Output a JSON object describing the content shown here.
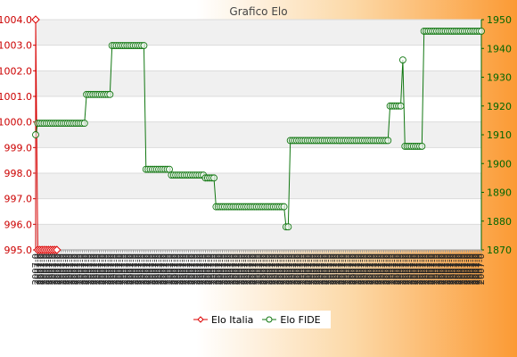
{
  "chart_data": {
    "type": "line",
    "title": "Grafico Elo",
    "colors": {
      "left_axis": "#cc0000",
      "right_axis": "#006600",
      "italia": "#dd0000",
      "fide": "#117711",
      "grid_band": "#f0f0f0"
    },
    "grid": true,
    "legend_position": "bottom-center",
    "y_left": {
      "ylim": [
        995.0,
        1004.0
      ],
      "ticks": [
        "995.0",
        "996.0",
        "997.0",
        "998.0",
        "999.0",
        "1000.0",
        "1001.0",
        "1002.0",
        "1003.0",
        "1004.0"
      ]
    },
    "y_right": {
      "ylim": [
        1870,
        1950
      ],
      "ticks": [
        "1870",
        "1880",
        "1890",
        "1900",
        "1910",
        "1920",
        "1930",
        "1940",
        "1950"
      ]
    },
    "x_tick_label": "2007-0",
    "series": [
      {
        "name": "Elo Italia",
        "axis": "left",
        "values": [
          1004.0,
          995.0,
          995.0,
          995.0,
          995.0,
          995.0,
          995.0,
          995.0,
          995.0,
          995.0,
          995.0
        ]
      },
      {
        "name": "Elo FIDE",
        "axis": "right",
        "values": [
          1910,
          1914,
          1914,
          1914,
          1914,
          1914,
          1914,
          1914,
          1914,
          1914,
          1914,
          1914,
          1914,
          1914,
          1914,
          1914,
          1914,
          1914,
          1914,
          1914,
          1914,
          1914,
          1914,
          1914,
          1924,
          1924,
          1924,
          1924,
          1924,
          1924,
          1924,
          1924,
          1924,
          1924,
          1924,
          1924,
          1941,
          1941,
          1941,
          1941,
          1941,
          1941,
          1941,
          1941,
          1941,
          1941,
          1941,
          1941,
          1941,
          1941,
          1941,
          1941,
          1898,
          1898,
          1898,
          1898,
          1898,
          1898,
          1898,
          1898,
          1898,
          1898,
          1898,
          1898,
          1896,
          1896,
          1896,
          1896,
          1896,
          1896,
          1896,
          1896,
          1896,
          1896,
          1896,
          1896,
          1896,
          1896,
          1896,
          1896,
          1895,
          1895,
          1895,
          1895,
          1895,
          1885,
          1885,
          1885,
          1885,
          1885,
          1885,
          1885,
          1885,
          1885,
          1885,
          1885,
          1885,
          1885,
          1885,
          1885,
          1885,
          1885,
          1885,
          1885,
          1885,
          1885,
          1885,
          1885,
          1885,
          1885,
          1885,
          1885,
          1885,
          1885,
          1885,
          1885,
          1885,
          1885,
          1878,
          1878,
          1908,
          1908,
          1908,
          1908,
          1908,
          1908,
          1908,
          1908,
          1908,
          1908,
          1908,
          1908,
          1908,
          1908,
          1908,
          1908,
          1908,
          1908,
          1908,
          1908,
          1908,
          1908,
          1908,
          1908,
          1908,
          1908,
          1908,
          1908,
          1908,
          1908,
          1908,
          1908,
          1908,
          1908,
          1908,
          1908,
          1908,
          1908,
          1908,
          1908,
          1908,
          1908,
          1908,
          1908,
          1908,
          1908,
          1908,
          1920,
          1920,
          1920,
          1920,
          1920,
          1920,
          1936,
          1906,
          1906,
          1906,
          1906,
          1906,
          1906,
          1906,
          1906,
          1906,
          1946,
          1946,
          1946,
          1946,
          1946,
          1946,
          1946,
          1946,
          1946,
          1946,
          1946,
          1946,
          1946,
          1946,
          1946,
          1946,
          1946,
          1946,
          1946,
          1946,
          1946,
          1946,
          1946,
          1946,
          1946,
          1946,
          1946,
          1946
        ]
      }
    ]
  }
}
